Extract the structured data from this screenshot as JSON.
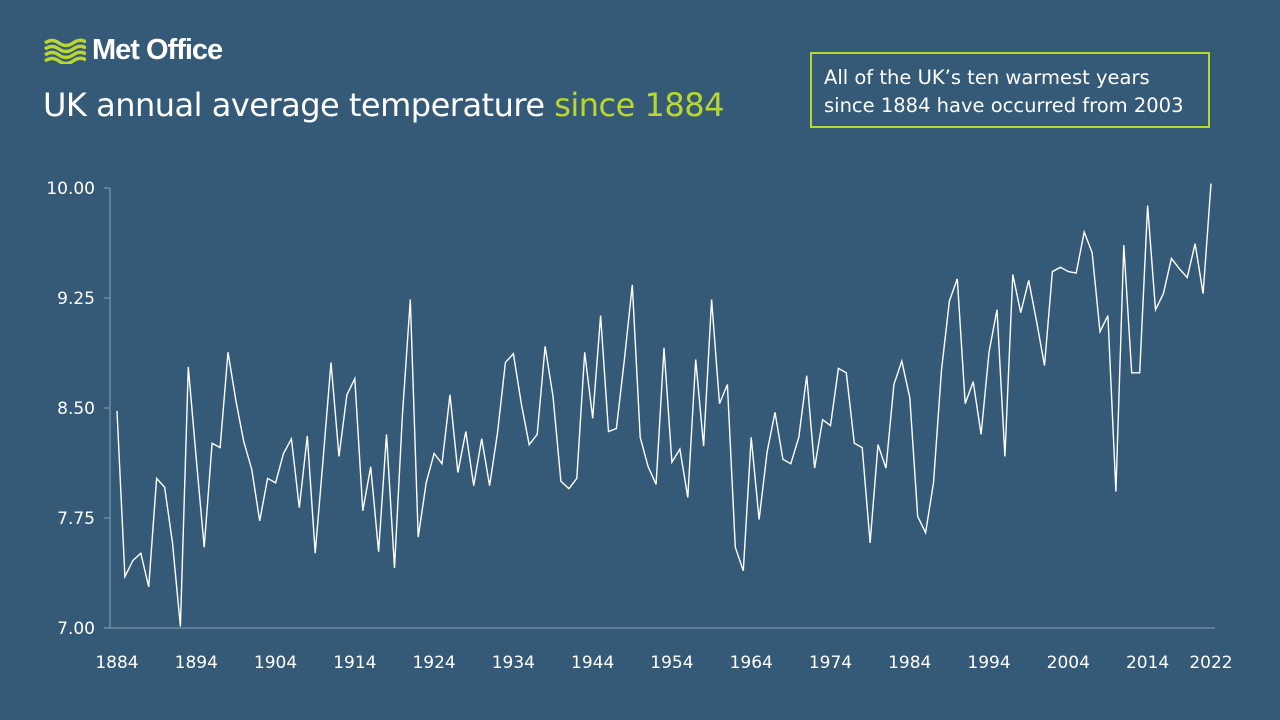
{
  "header": {
    "logo_text": "Met Office",
    "title_main": "UK annual average temperature",
    "title_highlight": "since 1884",
    "callout_line1": "All of the UK’s ten warmest years",
    "callout_line2": "since 1884 have occurred from 2003"
  },
  "colors": {
    "background": "#355a78",
    "accent": "#b9d72f",
    "line": "#ffffff",
    "axis": "#8aa5bb"
  },
  "chart_data": {
    "type": "line",
    "title": "UK annual average temperature since 1884",
    "xlabel": "",
    "ylabel": "",
    "xlim": [
      1884,
      2022
    ],
    "ylim": [
      7.0,
      10.0
    ],
    "grid": false,
    "x_ticks": [
      "1884",
      "1894",
      "1904",
      "1914",
      "1924",
      "1934",
      "1944",
      "1954",
      "1964",
      "1974",
      "1984",
      "1994",
      "2004",
      "2014",
      "2022"
    ],
    "y_ticks": [
      "7.00",
      "7.75",
      "8.50",
      "9.25",
      "10.00"
    ],
    "x_start": 1884,
    "values": [
      8.48,
      7.35,
      7.46,
      7.51,
      7.28,
      8.02,
      7.96,
      7.58,
      7.01,
      8.78,
      8.15,
      7.55,
      8.26,
      8.23,
      8.88,
      8.55,
      8.27,
      8.08,
      7.73,
      8.02,
      7.99,
      8.19,
      8.29,
      7.82,
      8.31,
      7.51,
      8.15,
      8.81,
      8.17,
      8.59,
      8.7,
      7.8,
      8.1,
      7.52,
      8.32,
      7.41,
      8.45,
      9.24,
      7.62,
      7.99,
      8.19,
      8.12,
      8.59,
      8.06,
      8.34,
      7.97,
      8.29,
      7.97,
      8.33,
      8.81,
      8.87,
      8.53,
      8.25,
      8.32,
      8.92,
      8.58,
      8.0,
      7.95,
      8.02,
      8.88,
      8.43,
      9.13,
      8.34,
      8.36,
      8.83,
      9.34,
      8.3,
      8.1,
      7.98,
      8.91,
      8.13,
      8.22,
      7.89,
      8.83,
      8.24,
      9.24,
      8.53,
      8.66,
      7.55,
      7.39,
      8.3,
      7.74,
      8.2,
      8.47,
      8.15,
      8.12,
      8.3,
      8.72,
      8.09,
      8.42,
      8.38,
      8.77,
      8.74,
      8.26,
      8.23,
      7.58,
      8.25,
      8.09,
      8.66,
      8.82,
      8.57,
      7.76,
      7.65,
      7.99,
      8.76,
      9.23,
      9.38,
      8.53,
      8.68,
      8.32,
      8.88,
      9.17,
      8.17,
      9.41,
      9.15,
      9.37,
      9.09,
      8.79,
      9.43,
      9.46,
      9.43,
      9.42,
      9.7,
      9.56,
      9.02,
      9.13,
      7.93,
      9.61,
      8.74,
      8.74,
      9.88,
      9.17,
      9.28,
      9.52,
      9.45,
      9.39,
      9.62,
      9.28,
      10.03
    ]
  }
}
